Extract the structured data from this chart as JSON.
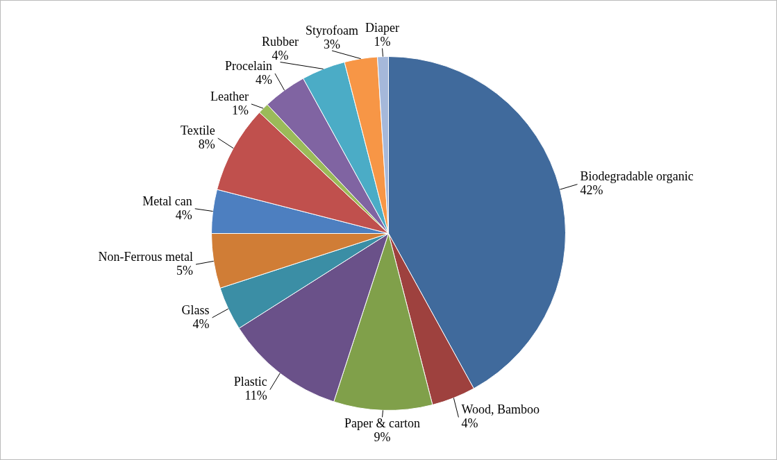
{
  "chart_data": {
    "type": "pie",
    "categories": [
      "Biodegradable organic",
      "Wood, Bamboo",
      "Paper & carton",
      "Plastic",
      "Glass",
      "Non-Ferrous metal",
      "Metal can",
      "Textile",
      "Leather",
      "Procelain",
      "Rubber",
      "Styrofoam",
      "Diaper"
    ],
    "values": [
      42,
      4,
      9,
      11,
      4,
      5,
      4,
      8,
      1,
      4,
      4,
      3,
      1
    ],
    "value_labels": [
      "42%",
      "4%",
      "9%",
      "11%",
      "4%",
      "5%",
      "4%",
      "8%",
      "1%",
      "4%",
      "4%",
      "3%",
      "1%"
    ],
    "colors": [
      "#406a9c",
      "#9e413e",
      "#80a04a",
      "#6a5189",
      "#3b8ea5",
      "#d07d36",
      "#4d7fc0",
      "#c0504d",
      "#9bbb59",
      "#8064a2",
      "#4bacc6",
      "#f79646",
      "#a5b8da"
    ],
    "legend": false
  }
}
